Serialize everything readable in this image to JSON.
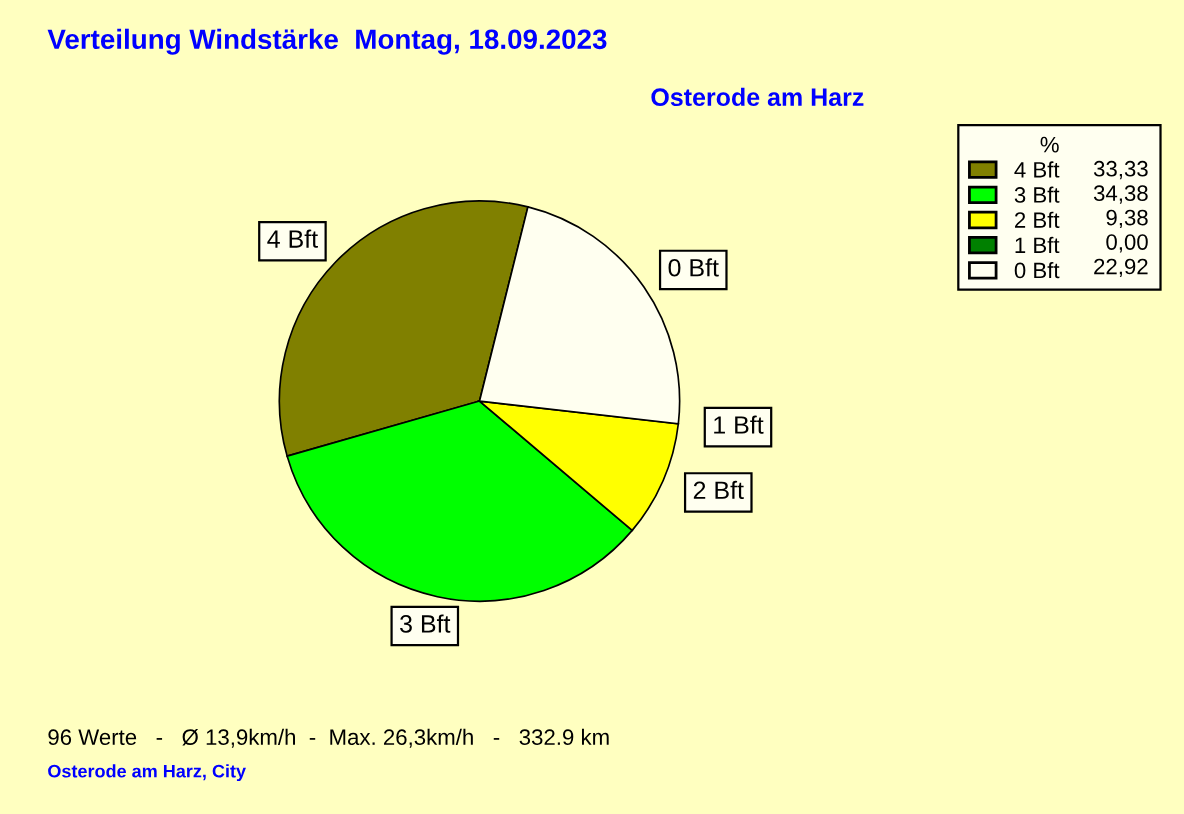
{
  "chart_data": {
    "type": "pie",
    "title": "Verteilung Windstärke  Montag, 18.09.2023",
    "subtitle": "Osterode am Harz",
    "categories": [
      "4 Bft",
      "3 Bft",
      "2 Bft",
      "1 Bft",
      "0 Bft"
    ],
    "values": [
      33.33,
      34.38,
      9.38,
      0.0,
      22.92
    ],
    "value_labels": [
      "33,33",
      "34,38",
      "9,38",
      "0,00",
      "22,92"
    ],
    "colors": [
      "#808000",
      "#00ff00",
      "#ffff00",
      "#008000",
      "#fffff0"
    ],
    "legend": "top right",
    "legend_title": "%",
    "annotations": [
      "96 Werte   -   Ø 13,9km/h  -  Max. 26,3km/h   -   332.9 km",
      "Osterode am Harz, City"
    ]
  }
}
